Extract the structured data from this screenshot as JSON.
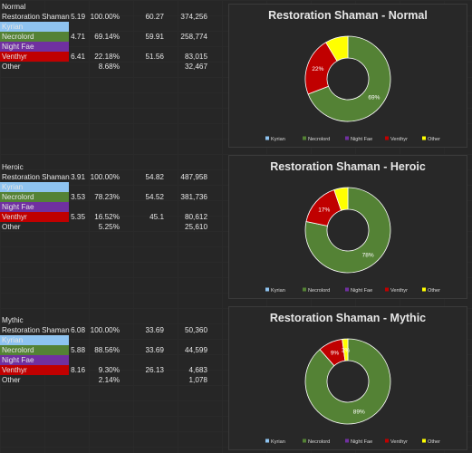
{
  "colors": {
    "Kyrian": "#8ec3f0",
    "Necrolord": "#548235",
    "Night Fae": "#7030a0",
    "Venthyr": "#c00000",
    "Other": "#ffff00"
  },
  "tables": [
    {
      "header": "Normal",
      "rows": [
        {
          "name": "Restoration Shaman",
          "c1": "5.19",
          "c2": "100.00%",
          "c3": "60.27",
          "c4": "374,256",
          "bg": ""
        },
        {
          "name": "Kyrian",
          "c1": "",
          "c2": "",
          "c3": "",
          "c4": "",
          "bg": "#8ec3f0"
        },
        {
          "name": "Necrolord",
          "c1": "4.71",
          "c2": "69.14%",
          "c3": "59.91",
          "c4": "258,774",
          "bg": "#548235"
        },
        {
          "name": "Night Fae",
          "c1": "",
          "c2": "",
          "c3": "",
          "c4": "",
          "bg": "#7030a0"
        },
        {
          "name": "Venthyr",
          "c1": "6.41",
          "c2": "22.18%",
          "c3": "51.56",
          "c4": "83,015",
          "bg": "#c00000"
        },
        {
          "name": "Other",
          "c1": "",
          "c2": "8.68%",
          "c3": "",
          "c4": "32,467",
          "bg": ""
        }
      ]
    },
    {
      "header": "Heroic",
      "rows": [
        {
          "name": "Restoration Shaman",
          "c1": "3.91",
          "c2": "100.00%",
          "c3": "54.82",
          "c4": "487,958",
          "bg": ""
        },
        {
          "name": "Kyrian",
          "c1": "",
          "c2": "",
          "c3": "",
          "c4": "",
          "bg": "#8ec3f0"
        },
        {
          "name": "Necrolord",
          "c1": "3.53",
          "c2": "78.23%",
          "c3": "54.52",
          "c4": "381,736",
          "bg": "#548235"
        },
        {
          "name": "Night Fae",
          "c1": "",
          "c2": "",
          "c3": "",
          "c4": "",
          "bg": "#7030a0"
        },
        {
          "name": "Venthyr",
          "c1": "5.35",
          "c2": "16.52%",
          "c3": "45.1",
          "c4": "80,612",
          "bg": "#c00000"
        },
        {
          "name": "Other",
          "c1": "",
          "c2": "5.25%",
          "c3": "",
          "c4": "25,610",
          "bg": ""
        }
      ]
    },
    {
      "header": "Mythic",
      "rows": [
        {
          "name": "Restoration Shaman",
          "c1": "6.08",
          "c2": "100.00%",
          "c3": "33.69",
          "c4": "50,360",
          "bg": ""
        },
        {
          "name": "Kyrian",
          "c1": "",
          "c2": "",
          "c3": "",
          "c4": "",
          "bg": "#8ec3f0"
        },
        {
          "name": "Necrolord",
          "c1": "5.88",
          "c2": "88.56%",
          "c3": "33.69",
          "c4": "44,599",
          "bg": "#548235"
        },
        {
          "name": "Night Fae",
          "c1": "",
          "c2": "",
          "c3": "",
          "c4": "",
          "bg": "#7030a0"
        },
        {
          "name": "Venthyr",
          "c1": "8.16",
          "c2": "9.30%",
          "c3": "26.13",
          "c4": "4,683",
          "bg": "#c00000"
        },
        {
          "name": "Other",
          "c1": "",
          "c2": "2.14%",
          "c3": "",
          "c4": "1,078",
          "bg": ""
        }
      ]
    }
  ],
  "chart_data": [
    {
      "type": "pie",
      "title": "Restoration Shaman - Normal",
      "categories": [
        "Kyrian",
        "Necrolord",
        "Night Fae",
        "Venthyr",
        "Other"
      ],
      "values": [
        0,
        69.14,
        0,
        22.18,
        8.68
      ],
      "data_labels": [
        "",
        "69%",
        "",
        "22%",
        ""
      ],
      "legend": "bottom",
      "donut": true
    },
    {
      "type": "pie",
      "title": "Restoration Shaman - Heroic",
      "categories": [
        "Kyrian",
        "Necrolord",
        "Night Fae",
        "Venthyr",
        "Other"
      ],
      "values": [
        0,
        78.23,
        0,
        16.52,
        5.25
      ],
      "data_labels": [
        "",
        "78%",
        "",
        "17%",
        ""
      ],
      "legend": "bottom",
      "donut": true
    },
    {
      "type": "pie",
      "title": "Restoration Shaman - Mythic",
      "categories": [
        "Kyrian",
        "Necrolord",
        "Night Fae",
        "Venthyr",
        "Other"
      ],
      "values": [
        0,
        88.56,
        0,
        9.3,
        2.14
      ],
      "data_labels": [
        "",
        "89%",
        "",
        "9%",
        "2%"
      ],
      "legend": "bottom",
      "donut": true
    }
  ]
}
